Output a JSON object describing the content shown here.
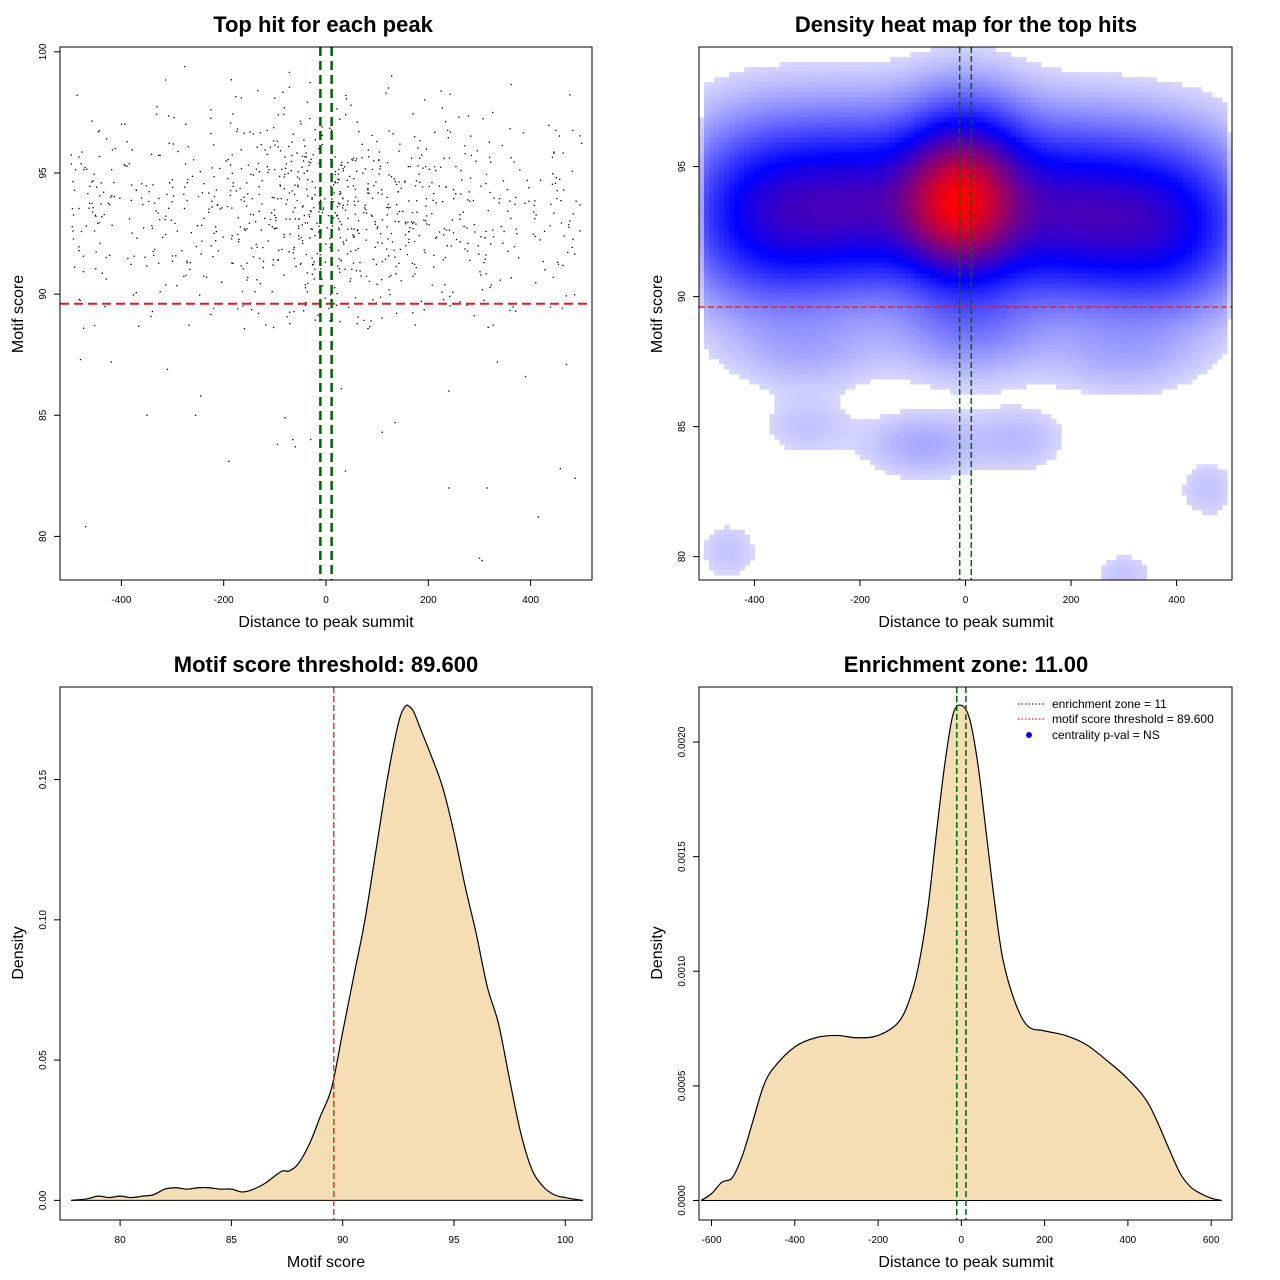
{
  "colors": {
    "threshold": "#e41a1c",
    "zone": "#006400",
    "fill": "#f5deb3",
    "heat_low": "#ffffff",
    "heat_mid": "#0000ff",
    "heat_high": "#ff0000",
    "legend_point": "#0000ff"
  },
  "chart_data": [
    {
      "id": "top-hits",
      "type": "scatter",
      "title": "Top hit for each peak",
      "xlabel": "Distance to peak summit",
      "ylabel": "Motif score",
      "xlim": [
        -520,
        520
      ],
      "ylim": [
        78.2,
        100.2
      ],
      "xticks": [
        -400,
        -200,
        0,
        200,
        400
      ],
      "yticks": [
        80,
        85,
        90,
        95,
        100
      ],
      "threshold": 89.6,
      "zone": [
        -11,
        11
      ],
      "points": {
        "n": 1000,
        "x_range": [
          -500,
          500
        ],
        "center_sd": 120,
        "y_mean": 93.3,
        "y_sd": 2.3,
        "x_density_peak": 0,
        "note": ""
      },
      "outliers": [
        {
          "x": -470,
          "y": 80.4
        },
        {
          "x": 305,
          "y": 79.0
        },
        {
          "x": 300,
          "y": 79.1
        },
        {
          "x": 415,
          "y": 80.8
        },
        {
          "x": 487,
          "y": 82.4
        },
        {
          "x": 458,
          "y": 82.8
        },
        {
          "x": -190,
          "y": 83.1
        },
        {
          "x": 240,
          "y": 82.0
        },
        {
          "x": 315,
          "y": 82.0
        },
        {
          "x": -60,
          "y": 83.7
        },
        {
          "x": -95,
          "y": 83.8
        },
        {
          "x": -65,
          "y": 84.0
        },
        {
          "x": -80,
          "y": 84.9
        },
        {
          "x": -30,
          "y": 84.0
        },
        {
          "x": 110,
          "y": 84.3
        },
        {
          "x": 135,
          "y": 84.7
        },
        {
          "x": 38,
          "y": 82.7
        },
        {
          "x": -350,
          "y": 85.0
        },
        {
          "x": -255,
          "y": 85.0
        },
        {
          "x": -480,
          "y": 87.3
        },
        {
          "x": -420,
          "y": 87.2
        },
        {
          "x": 390,
          "y": 86.6
        },
        {
          "x": 470,
          "y": 87.1
        },
        {
          "x": 240,
          "y": 86.0
        },
        {
          "x": -245,
          "y": 85.8
        },
        {
          "x": 30,
          "y": 86.1
        },
        {
          "x": -310,
          "y": 86.9
        },
        {
          "x": 335,
          "y": 87.2
        }
      ]
    },
    {
      "id": "heatmap",
      "type": "heatmap",
      "title": "Density heat map for the top hits",
      "xlabel": "Distance to peak summit",
      "ylabel": "Motif score",
      "xlim": [
        -505,
        505
      ],
      "ylim": [
        79.1,
        99.6
      ],
      "xticks": [
        -400,
        -200,
        0,
        200,
        400
      ],
      "yticks": [
        80,
        85,
        90,
        95
      ],
      "threshold": 89.6,
      "zone": [
        -11,
        11
      ],
      "blobs": [
        {
          "x": 0,
          "y": 93.8,
          "sx": 75,
          "sy": 2.0,
          "w": 1.0
        },
        {
          "x": -30,
          "y": 93.5,
          "sx": 60,
          "sy": 1.4,
          "w": 0.3
        },
        {
          "x": -190,
          "y": 93.5,
          "sx": 110,
          "sy": 2.0,
          "w": 0.55
        },
        {
          "x": -380,
          "y": 93.2,
          "sx": 100,
          "sy": 2.1,
          "w": 0.45
        },
        {
          "x": 190,
          "y": 93.2,
          "sx": 110,
          "sy": 2.0,
          "w": 0.55
        },
        {
          "x": 380,
          "y": 92.8,
          "sx": 100,
          "sy": 2.0,
          "w": 0.45
        },
        {
          "x": 10,
          "y": 88.8,
          "sx": 90,
          "sy": 1.2,
          "w": 0.1
        },
        {
          "x": -300,
          "y": 88.0,
          "sx": 90,
          "sy": 1.0,
          "w": 0.05
        },
        {
          "x": 300,
          "y": 87.8,
          "sx": 90,
          "sy": 1.0,
          "w": 0.05
        },
        {
          "x": -80,
          "y": 84.3,
          "sx": 70,
          "sy": 0.8,
          "w": 0.06
        },
        {
          "x": 100,
          "y": 84.5,
          "sx": 60,
          "sy": 0.8,
          "w": 0.04
        },
        {
          "x": -300,
          "y": 85.0,
          "sx": 60,
          "sy": 0.8,
          "w": 0.03
        },
        {
          "x": -450,
          "y": 80.2,
          "sx": 40,
          "sy": 0.8,
          "w": 0.03
        },
        {
          "x": 300,
          "y": 79.3,
          "sx": 40,
          "sy": 0.6,
          "w": 0.03
        },
        {
          "x": 460,
          "y": 82.6,
          "sx": 40,
          "sy": 0.8,
          "w": 0.03
        }
      ]
    },
    {
      "id": "score-density",
      "type": "area",
      "title": "Motif score threshold: 89.600",
      "xlabel": "Motif score",
      "ylabel": "Density",
      "xlim": [
        77.3,
        101.2
      ],
      "ylim": [
        -0.007,
        0.183
      ],
      "xticks": [
        80,
        85,
        90,
        95,
        100
      ],
      "yticks": [
        0.0,
        0.05,
        0.1,
        0.15
      ],
      "ytick_labels": [
        "0.00",
        "0.05",
        "0.10",
        "0.15"
      ],
      "threshold": 89.6,
      "x": [
        77.8,
        78.5,
        79.0,
        79.5,
        80.0,
        80.5,
        81.0,
        81.5,
        82.0,
        82.5,
        83.0,
        83.5,
        84.0,
        84.5,
        85.0,
        85.5,
        86.0,
        86.5,
        87.0,
        87.3,
        87.6,
        88.0,
        88.5,
        89.0,
        89.5,
        90.0,
        90.5,
        91.0,
        91.5,
        92.0,
        92.5,
        92.8,
        93.0,
        93.2,
        93.5,
        94.0,
        94.5,
        95.0,
        95.5,
        96.0,
        96.5,
        97.0,
        97.5,
        98.0,
        98.5,
        99.0,
        99.5,
        100.0,
        100.5,
        100.8
      ],
      "y": [
        0.0,
        0.0005,
        0.0015,
        0.001,
        0.0015,
        0.001,
        0.0015,
        0.002,
        0.004,
        0.0045,
        0.004,
        0.0045,
        0.0045,
        0.004,
        0.004,
        0.003,
        0.004,
        0.006,
        0.009,
        0.0105,
        0.0105,
        0.013,
        0.02,
        0.03,
        0.04,
        0.06,
        0.08,
        0.1,
        0.125,
        0.15,
        0.17,
        0.176,
        0.176,
        0.174,
        0.168,
        0.158,
        0.147,
        0.131,
        0.112,
        0.095,
        0.076,
        0.063,
        0.043,
        0.024,
        0.011,
        0.005,
        0.002,
        0.001,
        0.0003,
        0.0
      ]
    },
    {
      "id": "distance-density",
      "type": "area",
      "title": "Enrichment zone: 11.00",
      "xlabel": "Distance to peak summit",
      "ylabel": "Density",
      "xlim": [
        -630,
        650
      ],
      "ylim": [
        -8.5e-05,
        0.00224
      ],
      "xticks": [
        -600,
        -400,
        -200,
        0,
        200,
        400,
        600
      ],
      "yticks": [
        0.0,
        0.0005,
        0.001,
        0.0015,
        0.002
      ],
      "ytick_labels": [
        "0.0000",
        "0.0005",
        "0.0010",
        "0.0015",
        "0.0020"
      ],
      "zone": [
        -11,
        11
      ],
      "x": [
        -625,
        -600,
        -575,
        -550,
        -525,
        -500,
        -475,
        -450,
        -400,
        -350,
        -300,
        -250,
        -200,
        -150,
        -120,
        -100,
        -80,
        -60,
        -40,
        -20,
        0,
        20,
        40,
        60,
        80,
        100,
        130,
        160,
        200,
        250,
        300,
        350,
        400,
        450,
        500,
        525,
        550,
        575,
        600,
        625
      ],
      "y": [
        0.0,
        3e-05,
        8e-05,
        0.0001,
        0.0002,
        0.00035,
        0.0005,
        0.00058,
        0.00067,
        0.00071,
        0.00072,
        0.00071,
        0.00072,
        0.00078,
        0.0009,
        0.00105,
        0.00128,
        0.0016,
        0.0019,
        0.00212,
        0.00216,
        0.0021,
        0.0019,
        0.0016,
        0.0013,
        0.00105,
        0.00086,
        0.00076,
        0.00074,
        0.00072,
        0.00068,
        0.00061,
        0.00053,
        0.00042,
        0.00022,
        0.00012,
        6e-05,
        3e-05,
        1e-05,
        0.0
      ]
    }
  ],
  "legend": {
    "items": [
      {
        "label": "enrichment zone = 11",
        "style": "dotted",
        "color": "#006400"
      },
      {
        "label": "motif score threshold = 89.600",
        "style": "dotted",
        "color": "#e41a1c"
      },
      {
        "label": "centrality p-val = NS",
        "style": "point",
        "color": "#0000ff"
      }
    ]
  }
}
